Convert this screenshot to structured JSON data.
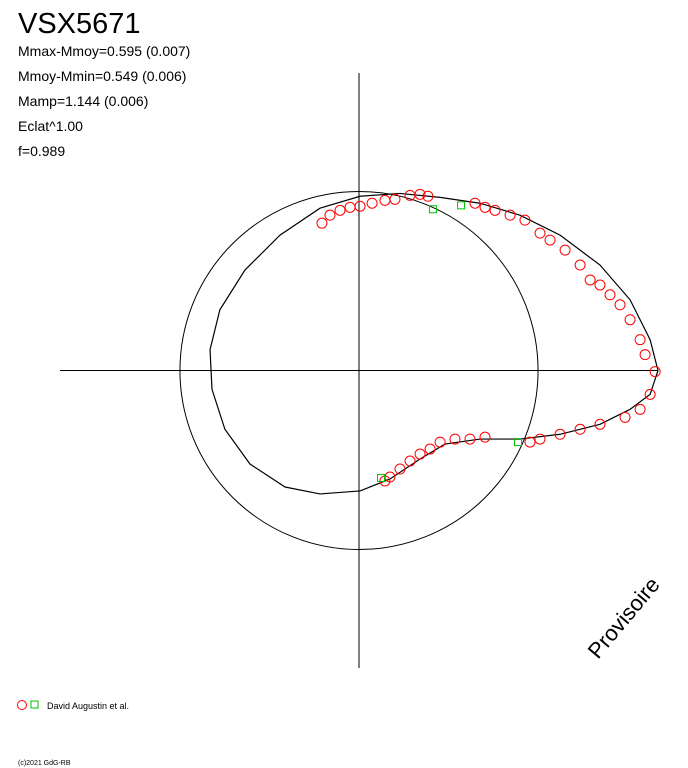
{
  "chart_data": {
    "type": "polar-scatter",
    "title": "VSX5671",
    "annotations": [
      "Mmax-Mmoy=0.595 (0.007)",
      "Mmoy-Mmin=0.549 (0.006)",
      "Mamp=1.144 (0.006)",
      "Eclat^1.00",
      "f=0.989"
    ],
    "watermark": "Provisoire",
    "copyright": "(c)2021 GdG-RB",
    "legend_label": "David Augustin et al.",
    "xlim": [
      -1.67,
      1.67
    ],
    "ylim": [
      -1.67,
      1.67
    ],
    "reference_circle": 1,
    "curve": {
      "color": "#000000",
      "x": [
        1.67,
        1.626,
        1.514,
        1.346,
        1.123,
        0.899,
        0.676,
        0.453,
        0.229,
        0.006,
        -0.218,
        -0.441,
        -0.637,
        -0.777,
        -0.832,
        -0.821,
        -0.749,
        -0.609,
        -0.413,
        -0.218,
        0.006,
        0.173,
        0.341,
        0.48,
        0.676,
        0.899,
        1.123,
        1.346,
        1.514,
        1.626,
        1.67
      ],
      "y": [
        0,
        0.173,
        0.397,
        0.592,
        0.76,
        0.872,
        0.939,
        0.972,
        0.994,
        0.978,
        0.911,
        0.76,
        0.564,
        0.341,
        0.117,
        -0.106,
        -0.33,
        -0.525,
        -0.654,
        -0.693,
        -0.676,
        -0.609,
        -0.497,
        -0.413,
        -0.385,
        -0.385,
        -0.358,
        -0.302,
        -0.218,
        -0.134,
        0
      ]
    },
    "series": [
      {
        "name": "David Augustin et al.",
        "color": "#ff0000",
        "marker": "circle",
        "x": [
          -0.207,
          -0.162,
          -0.106,
          -0.05,
          0.006,
          0.073,
          0.145,
          0.201,
          0.285,
          0.341,
          0.385,
          0.648,
          0.704,
          0.76,
          0.844,
          0.927,
          1.011,
          1.067,
          1.151,
          1.235,
          1.291,
          1.346,
          1.402,
          1.458,
          1.514,
          1.57,
          1.598,
          1.654,
          1.626,
          1.57,
          1.486,
          1.346,
          1.235,
          1.123,
          1.011,
          0.955,
          0.704,
          0.62,
          0.536,
          0.453,
          0.397,
          0.341,
          0.285,
          0.229,
          0.173,
          0.145
        ],
        "y": [
          0.827,
          0.872,
          0.899,
          0.916,
          0.922,
          0.939,
          0.955,
          0.961,
          0.983,
          0.989,
          0.978,
          0.939,
          0.916,
          0.899,
          0.872,
          0.844,
          0.771,
          0.732,
          0.676,
          0.592,
          0.508,
          0.48,
          0.425,
          0.369,
          0.285,
          0.173,
          0.089,
          -0.006,
          -0.134,
          -0.218,
          -0.263,
          -0.302,
          -0.33,
          -0.358,
          -0.385,
          -0.402,
          -0.374,
          -0.385,
          -0.385,
          -0.402,
          -0.441,
          -0.469,
          -0.508,
          -0.553,
          -0.598,
          -0.62
        ]
      },
      {
        "color": "#00c000",
        "marker": "square",
        "x": [
          0.413,
          0.57,
          0.888,
          0.123
        ],
        "y": [
          0.905,
          0.927,
          -0.402,
          -0.603
        ]
      }
    ]
  }
}
